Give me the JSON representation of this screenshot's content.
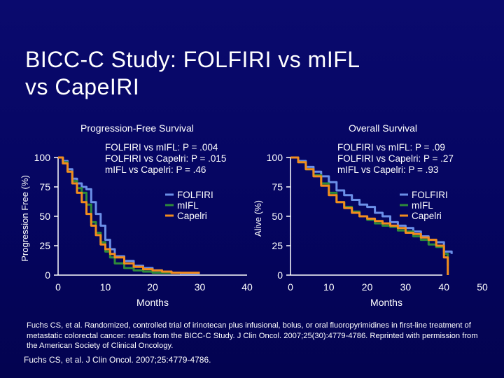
{
  "slide": {
    "title": "BICC-C Study: FOLFIRI vs mIFL\nvs CapeIRI",
    "footnote": "Fuchs CS, et al. Randomized, controlled trial of irinotecan plus infusional, bolus, or oral fluoropyrimidines in first-line treatment of metastatic colorectal cancer: results from the BICC-C Study. J Clin Oncol. 2007;25(30):4779-4786. Reprinted with permission from the American Society of Clinical Oncology.",
    "citation": "Fuchs CS, et al. J Clin Oncol. 2007;25:4779-4786."
  },
  "colors": {
    "folfiri": "#6b8fe8",
    "mifl": "#2e8b3a",
    "capeiri": "#f28c1e",
    "axis": "#ffffff"
  },
  "chart_data": [
    {
      "type": "line",
      "title": "Progression-Free Survival",
      "xlabel": "Months",
      "ylabel": "Progression Free (%)",
      "xlim": [
        0,
        40
      ],
      "ylim": [
        0,
        100
      ],
      "xticks": [
        "0",
        "10",
        "20",
        "30",
        "40"
      ],
      "yticks": [
        "0",
        "25",
        "50",
        "75",
        "100"
      ],
      "legend_position": "right",
      "stats": [
        "FOLFIRI vs mIFL: P = .004",
        "FOLFIRI vs Capelri: P = .015",
        "mIFL vs Capelri: P = .46"
      ],
      "series": [
        {
          "name": "FOLFIRI",
          "color": "#6b8fe8",
          "x": [
            0,
            1,
            2,
            3,
            4,
            5,
            6,
            7,
            8,
            9,
            10,
            11,
            12,
            14,
            16,
            18,
            20,
            22,
            24,
            26,
            28,
            30
          ],
          "y": [
            100,
            97,
            90,
            82,
            78,
            75,
            73,
            62,
            52,
            42,
            30,
            22,
            16,
            12,
            8,
            6,
            4,
            3,
            2,
            1,
            1,
            1
          ]
        },
        {
          "name": "mIFL",
          "color": "#2e8b3a",
          "x": [
            0,
            1,
            2,
            3,
            4,
            5,
            6,
            7,
            8,
            9,
            10,
            11,
            12,
            14,
            16,
            18,
            20,
            22,
            24
          ],
          "y": [
            100,
            96,
            88,
            80,
            74,
            70,
            60,
            45,
            36,
            28,
            20,
            15,
            10,
            6,
            4,
            3,
            2,
            2,
            2
          ]
        },
        {
          "name": "Capelri",
          "color": "#f28c1e",
          "x": [
            0,
            1,
            2,
            3,
            4,
            5,
            6,
            7,
            8,
            9,
            10,
            11,
            12,
            14,
            16,
            18,
            20,
            22,
            24,
            26,
            28,
            30
          ],
          "y": [
            100,
            95,
            88,
            78,
            70,
            62,
            52,
            42,
            34,
            26,
            22,
            18,
            15,
            10,
            7,
            5,
            4,
            3,
            2,
            2,
            2,
            2
          ]
        }
      ]
    },
    {
      "type": "line",
      "title": "Overall Survival",
      "xlabel": "Months",
      "ylabel": "Alive (%)",
      "xlim": [
        0,
        50
      ],
      "ylim": [
        0,
        100
      ],
      "xticks": [
        "0",
        "10",
        "20",
        "30",
        "40",
        "50"
      ],
      "yticks": [
        "0",
        "25",
        "50",
        "75",
        "100"
      ],
      "legend_position": "right",
      "stats": [
        "FOLFIRI vs mIFL: P = .09",
        "FOLFIRI vs Capelri: P = .27",
        "mIFL vs Capelri: P = .93"
      ],
      "series": [
        {
          "name": "FOLFIRI",
          "color": "#6b8fe8",
          "x": [
            0,
            2,
            4,
            6,
            8,
            10,
            12,
            14,
            16,
            18,
            20,
            22,
            24,
            26,
            28,
            30,
            32,
            34,
            36,
            38,
            40,
            42
          ],
          "y": [
            100,
            97,
            92,
            88,
            84,
            79,
            72,
            68,
            64,
            60,
            58,
            53,
            50,
            45,
            42,
            40,
            37,
            33,
            30,
            28,
            20,
            18
          ]
        },
        {
          "name": "mIFL",
          "color": "#2e8b3a",
          "x": [
            0,
            2,
            4,
            6,
            8,
            10,
            12,
            14,
            16,
            18,
            20,
            22,
            24,
            26,
            28,
            30,
            32,
            34,
            36,
            38,
            40,
            41
          ],
          "y": [
            100,
            96,
            90,
            85,
            78,
            70,
            62,
            58,
            54,
            50,
            47,
            44,
            42,
            41,
            38,
            37,
            33,
            30,
            26,
            24,
            18,
            8
          ]
        },
        {
          "name": "Capelri",
          "color": "#f28c1e",
          "x": [
            0,
            2,
            4,
            6,
            8,
            10,
            12,
            14,
            16,
            18,
            20,
            22,
            24,
            26,
            28,
            30,
            32,
            34,
            36,
            38,
            40,
            41
          ],
          "y": [
            100,
            96,
            90,
            84,
            76,
            68,
            62,
            57,
            53,
            50,
            48,
            46,
            44,
            42,
            40,
            36,
            35,
            32,
            30,
            25,
            15,
            0
          ]
        }
      ]
    }
  ]
}
